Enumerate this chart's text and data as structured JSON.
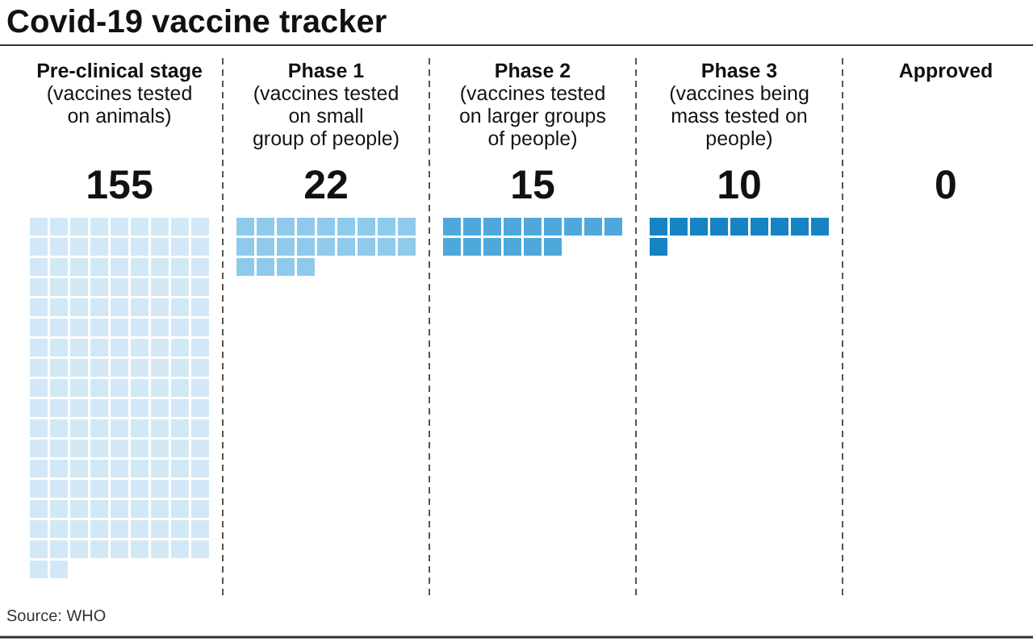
{
  "chart_data": {
    "type": "other",
    "title": "Covid-19 vaccine tracker",
    "categories": [
      "Pre-clinical stage\n(vaccines tested\non animals)",
      "Phase 1\n(vaccines tested\non small\ngroup of people)",
      "Phase 2\n(vaccines tested\non larger groups\nof people)",
      "Phase 3\n(vaccines being\nmass tested on\npeople)",
      "Approved"
    ],
    "values": [
      155,
      22,
      15,
      10,
      0
    ],
    "colors": [
      "#d3e8f6",
      "#8fcaec",
      "#4fa8dc",
      "#1683c4",
      "#0a6aa8"
    ],
    "data_labels": true,
    "annotations": [
      "Source: WHO"
    ]
  }
}
